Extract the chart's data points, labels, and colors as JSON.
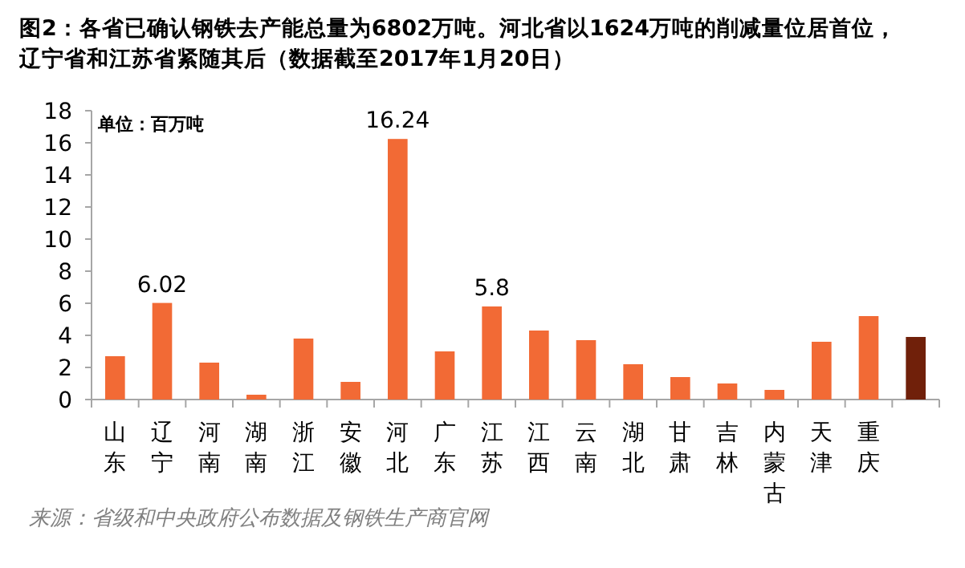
{
  "chart_data": {
    "type": "bar",
    "title": "图2：各省已确认钢铁去产能总量为6802万吨。河北省以1624万吨的削减量位居首位，辽宁省和江苏省紧随其后（数据截至2017年1月20日）",
    "ylabel": "单位：百万吨",
    "categories": [
      "山东",
      "辽宁",
      "河南",
      "湖南",
      "浙江",
      "安徽",
      "河北",
      "广东",
      "江苏",
      "江西",
      "云南",
      "湖北",
      "甘肃",
      "吉林",
      "内蒙古",
      "天津",
      "重庆",
      null
    ],
    "values": [
      2.7,
      6.02,
      2.3,
      0.3,
      3.8,
      1.1,
      16.24,
      3.0,
      5.8,
      4.3,
      3.7,
      2.2,
      1.4,
      1.0,
      0.6,
      3.6,
      5.2,
      3.9
    ],
    "value_labels": [
      null,
      "6.02",
      null,
      null,
      null,
      null,
      "16.24",
      null,
      "5.8",
      null,
      null,
      null,
      null,
      null,
      null,
      null,
      null,
      null
    ],
    "colors": [
      "#f26a35",
      "#f26a35",
      "#f26a35",
      "#f26a35",
      "#f26a35",
      "#f26a35",
      "#f26a35",
      "#f26a35",
      "#f26a35",
      "#f26a35",
      "#f26a35",
      "#f26a35",
      "#f26a35",
      "#f26a35",
      "#f26a35",
      "#f26a35",
      "#f26a35",
      "#70200a"
    ],
    "ylim": [
      0,
      18
    ],
    "yticks": [
      0,
      2,
      4,
      6,
      8,
      10,
      12,
      14,
      16,
      18
    ],
    "annotations": [
      "来源：省级和中央政府公布数据及钢铁生产商官网"
    ]
  }
}
